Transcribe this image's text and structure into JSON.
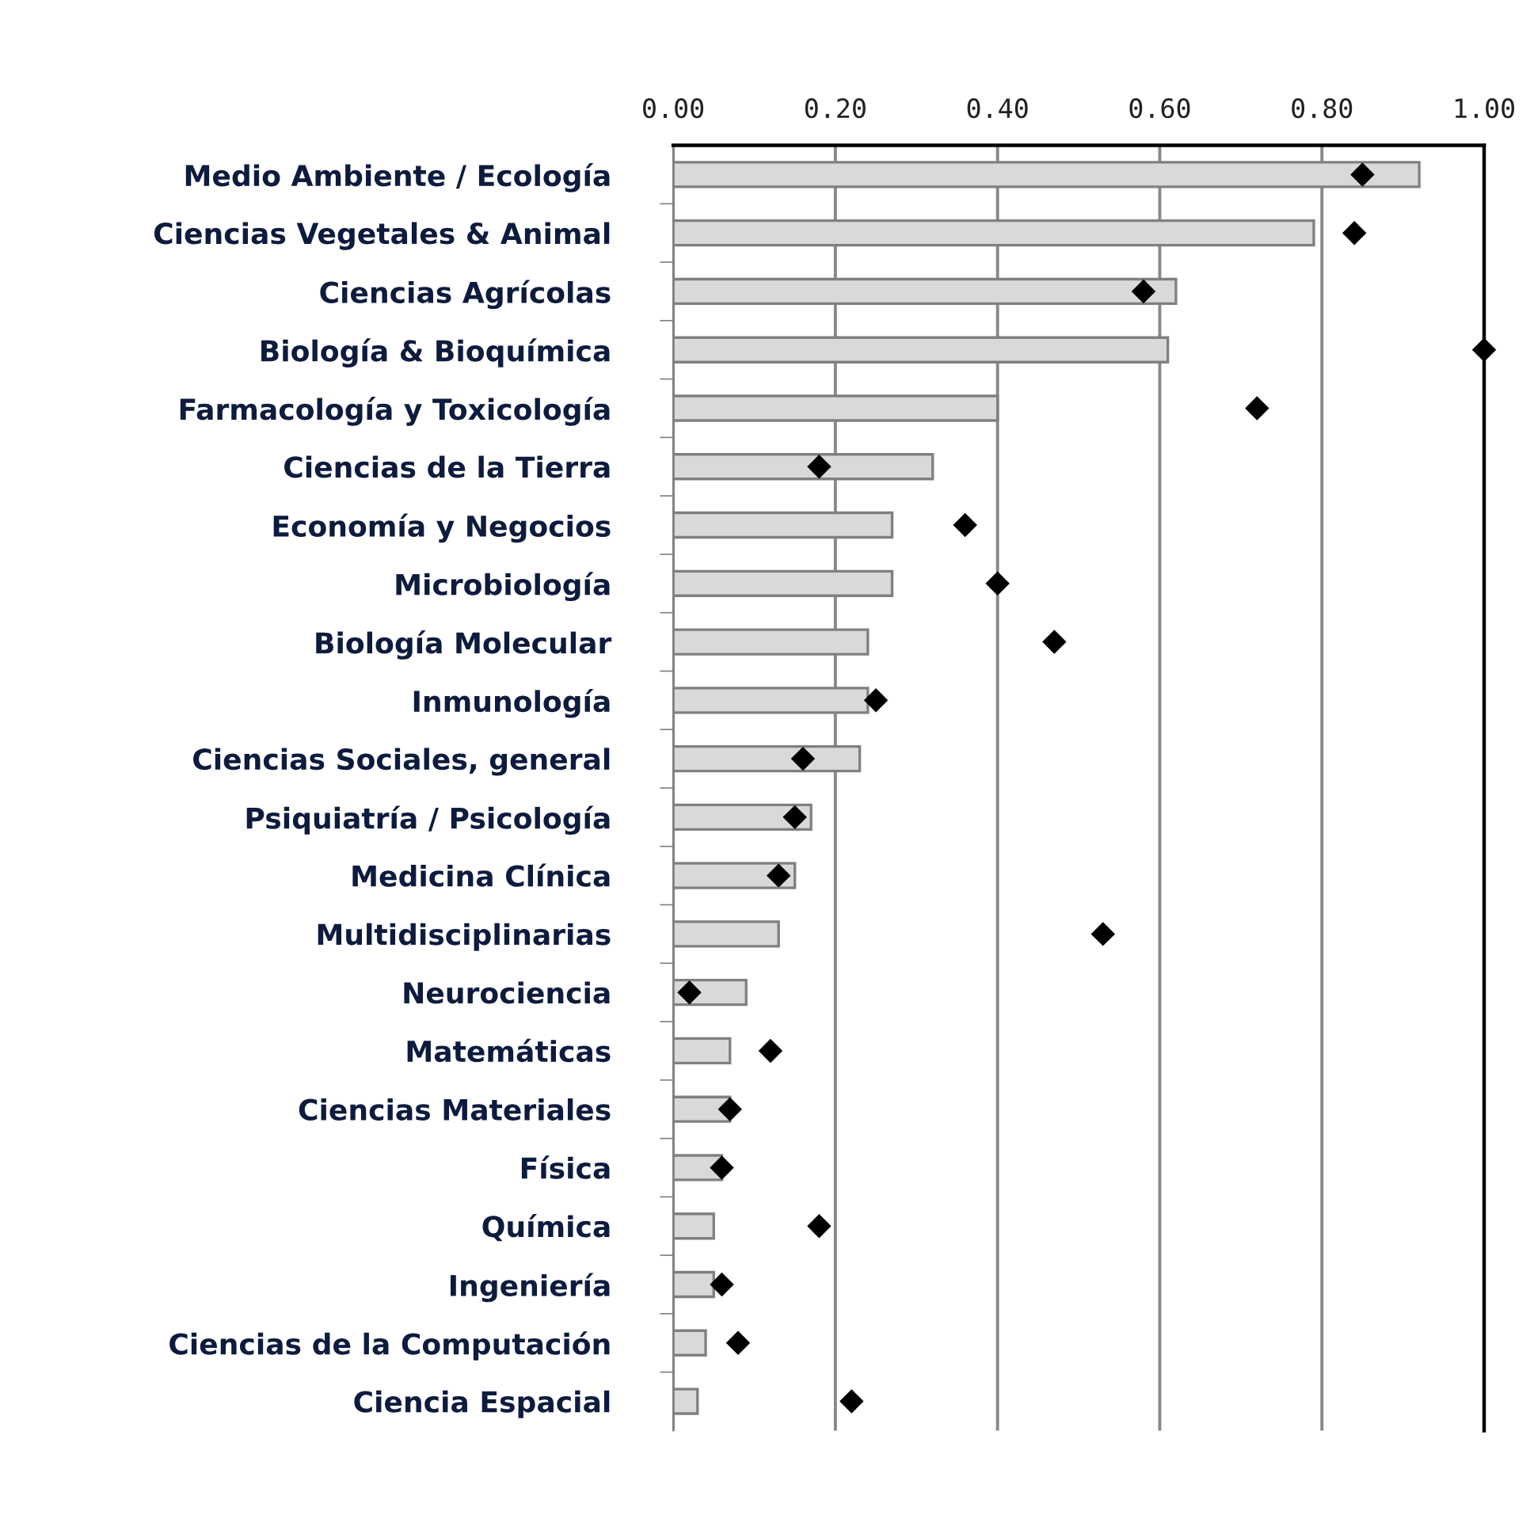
{
  "chart_data": {
    "type": "bar",
    "orientation": "horizontal",
    "categories": [
      "Medio Ambiente / Ecología",
      "Ciencias Vegetales & Animal",
      "Ciencias Agrícolas",
      "Biología & Bioquímica",
      "Farmacología y Toxicología",
      "Ciencias de la Tierra",
      "Economía y Negocios",
      "Microbiología",
      "Biología Molecular",
      "Inmunología",
      "Ciencias Sociales, general",
      "Psiquiatría / Psicología",
      "Medicina Clínica",
      "Multidisciplinarias",
      "Neurociencia",
      "Matemáticas",
      "Ciencias Materiales",
      "Física",
      "Química",
      "Ingeniería",
      "Ciencias de la Computación",
      "Ciencia Espacial"
    ],
    "series": [
      {
        "color": "#d9d9d9",
        "values": [
          0.92,
          0.79,
          0.62,
          0.61,
          0.4,
          0.32,
          0.27,
          0.27,
          0.24,
          0.24,
          0.23,
          0.17,
          0.15,
          0.13,
          0.09,
          0.07,
          0.07,
          0.06,
          0.05,
          0.05,
          0.04,
          0.03
        ]
      },
      {
        "type": "scatter",
        "color": "#000000",
        "marker": "diamond",
        "values": [
          0.85,
          0.84,
          0.58,
          1.0,
          0.72,
          0.18,
          0.36,
          0.4,
          0.47,
          0.25,
          0.16,
          0.15,
          0.13,
          0.53,
          0.02,
          0.12,
          0.07,
          0.06,
          0.18,
          0.06,
          0.08,
          0.22
        ]
      }
    ],
    "xlim": [
      0,
      1
    ],
    "xticks": [
      {
        "value": 0,
        "label": "0.00"
      },
      {
        "value": 0.2,
        "label": "0.20"
      },
      {
        "value": 0.4,
        "label": "0.40"
      },
      {
        "value": 0.6,
        "label": "0.60"
      },
      {
        "value": 0.8,
        "label": "0.80"
      },
      {
        "value": 1,
        "label": "1.00"
      }
    ],
    "grid": "x",
    "legend": false
  }
}
